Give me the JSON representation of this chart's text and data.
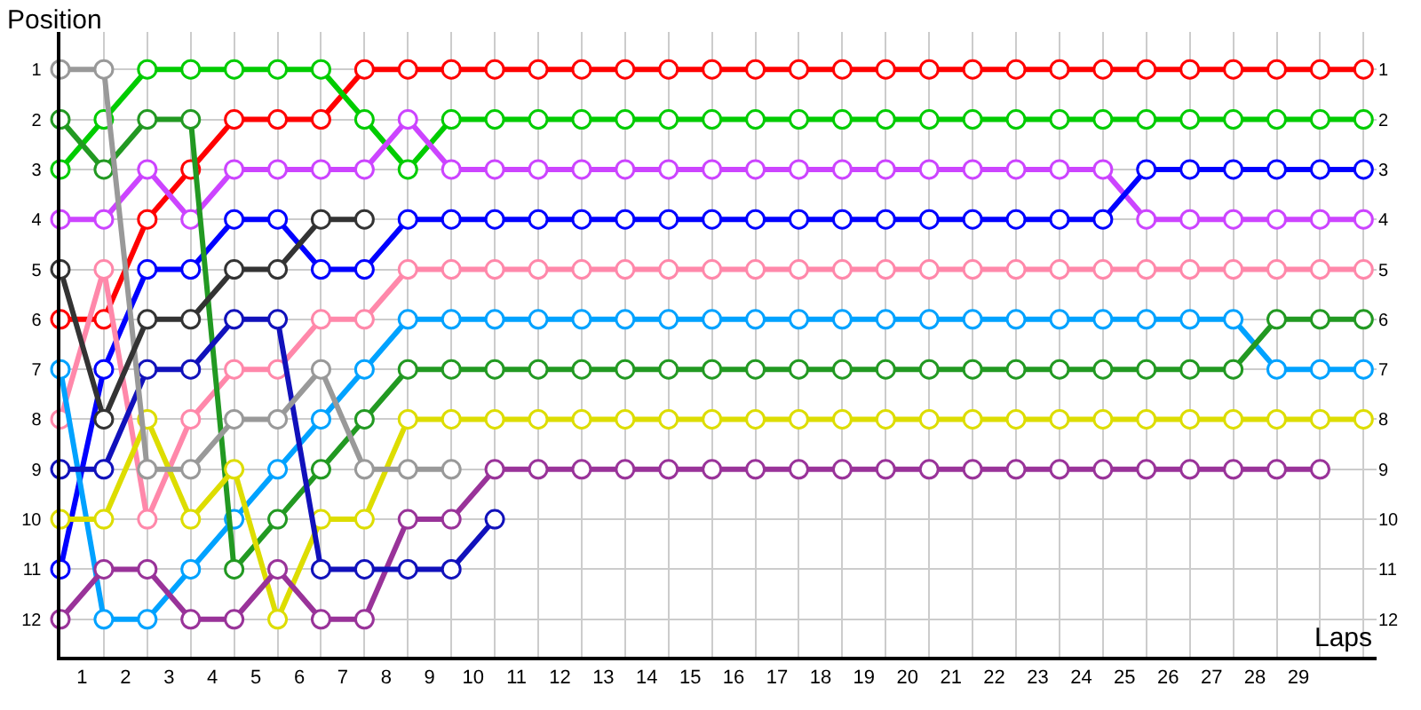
{
  "chart_data": {
    "type": "line",
    "xlabel": "Laps",
    "ylabel": "Position",
    "x": [
      0,
      1,
      2,
      3,
      4,
      5,
      6,
      7,
      8,
      9,
      10,
      11,
      12,
      13,
      14,
      15,
      16,
      17,
      18,
      19,
      20,
      21,
      22,
      23,
      24,
      25,
      26,
      27,
      28,
      29,
      30
    ],
    "xlim": [
      0,
      30.3
    ],
    "xticks": [
      {
        "value": 0.5,
        "label": "1"
      },
      {
        "value": 1.5,
        "label": "2"
      },
      {
        "value": 2.5,
        "label": "3"
      },
      {
        "value": 3.5,
        "label": "4"
      },
      {
        "value": 4.5,
        "label": "5"
      },
      {
        "value": 5.5,
        "label": "6"
      },
      {
        "value": 6.5,
        "label": "7"
      },
      {
        "value": 7.5,
        "label": "8"
      },
      {
        "value": 8.5,
        "label": "9"
      },
      {
        "value": 9.5,
        "label": "10"
      },
      {
        "value": 10.5,
        "label": "11"
      },
      {
        "value": 11.5,
        "label": "12"
      },
      {
        "value": 12.5,
        "label": "13"
      },
      {
        "value": 13.5,
        "label": "14"
      },
      {
        "value": 14.5,
        "label": "15"
      },
      {
        "value": 15.5,
        "label": "16"
      },
      {
        "value": 16.5,
        "label": "17"
      },
      {
        "value": 17.5,
        "label": "18"
      },
      {
        "value": 18.5,
        "label": "19"
      },
      {
        "value": 19.5,
        "label": "20"
      },
      {
        "value": 20.5,
        "label": "21"
      },
      {
        "value": 21.5,
        "label": "22"
      },
      {
        "value": 22.5,
        "label": "23"
      },
      {
        "value": 23.5,
        "label": "24"
      },
      {
        "value": 24.5,
        "label": "25"
      },
      {
        "value": 25.5,
        "label": "26"
      },
      {
        "value": 26.5,
        "label": "27"
      },
      {
        "value": 27.5,
        "label": "28"
      },
      {
        "value": 28.5,
        "label": "29"
      }
    ],
    "ylim": [
      12.75,
      0.25
    ],
    "yticks": [
      1,
      2,
      3,
      4,
      5,
      6,
      7,
      8,
      9,
      10,
      11,
      12
    ],
    "y2lim": [
      12.75,
      0.25
    ],
    "y2ticks": [
      1,
      2,
      3,
      4,
      5,
      6,
      7,
      8,
      9,
      10,
      11,
      12
    ],
    "grid": true,
    "legend": false,
    "marker": "circle",
    "line_style": "solid",
    "series": [
      {
        "color": "#ff0000",
        "values": [
          6,
          6,
          4,
          3,
          2,
          2,
          2,
          1,
          1,
          1,
          1,
          1,
          1,
          1,
          1,
          1,
          1,
          1,
          1,
          1,
          1,
          1,
          1,
          1,
          1,
          1,
          1,
          1,
          1,
          1,
          1
        ]
      },
      {
        "color": "#00cc00",
        "values": [
          3,
          2,
          1,
          1,
          1,
          1,
          1,
          2,
          3,
          2,
          2,
          2,
          2,
          2,
          2,
          2,
          2,
          2,
          2,
          2,
          2,
          2,
          2,
          2,
          2,
          2,
          2,
          2,
          2,
          2,
          2
        ]
      },
      {
        "color": "#cc44ff",
        "values": [
          4,
          4,
          3,
          4,
          3,
          3,
          3,
          3,
          2,
          3,
          3,
          3,
          3,
          3,
          3,
          3,
          3,
          3,
          3,
          3,
          3,
          3,
          3,
          3,
          3,
          4,
          4,
          4,
          4,
          4,
          4
        ]
      },
      {
        "color": "#0000ff",
        "values": [
          11,
          7,
          5,
          5,
          4,
          4,
          5,
          5,
          4,
          4,
          4,
          4,
          4,
          4,
          4,
          4,
          4,
          4,
          4,
          4,
          4,
          4,
          4,
          4,
          4,
          3,
          3,
          3,
          3,
          3,
          3
        ]
      },
      {
        "color": "#ff88aa",
        "values": [
          8,
          5,
          10,
          8,
          7,
          7,
          6,
          6,
          5,
          5,
          5,
          5,
          5,
          5,
          5,
          5,
          5,
          5,
          5,
          5,
          5,
          5,
          5,
          5,
          5,
          5,
          5,
          5,
          5,
          5,
          5
        ]
      },
      {
        "color": "#00a2ff",
        "values": [
          7,
          12,
          12,
          11,
          10,
          9,
          8,
          7,
          6,
          6,
          6,
          6,
          6,
          6,
          6,
          6,
          6,
          6,
          6,
          6,
          6,
          6,
          6,
          6,
          6,
          6,
          6,
          6,
          7,
          7,
          7
        ]
      },
      {
        "color": "#229922",
        "values": [
          2,
          3,
          2,
          2,
          11,
          10,
          9,
          8,
          7,
          7,
          7,
          7,
          7,
          7,
          7,
          7,
          7,
          7,
          7,
          7,
          7,
          7,
          7,
          7,
          7,
          7,
          7,
          7,
          6,
          6,
          6
        ]
      },
      {
        "color": "#dddd00",
        "values": [
          10,
          10,
          8,
          10,
          9,
          12,
          10,
          10,
          8,
          8,
          8,
          8,
          8,
          8,
          8,
          8,
          8,
          8,
          8,
          8,
          8,
          8,
          8,
          8,
          8,
          8,
          8,
          8,
          8,
          8,
          8
        ]
      },
      {
        "color": "#993399",
        "values": [
          12,
          11,
          11,
          12,
          12,
          11,
          12,
          12,
          10,
          10,
          9,
          9,
          9,
          9,
          9,
          9,
          9,
          9,
          9,
          9,
          9,
          9,
          9,
          9,
          9,
          9,
          9,
          9,
          9,
          9,
          null
        ]
      },
      {
        "color": "#1111bb",
        "values": [
          9,
          9,
          7,
          7,
          6,
          6,
          11,
          11,
          11,
          11,
          10,
          null,
          null,
          null,
          null,
          null,
          null,
          null,
          null,
          null,
          null,
          null,
          null,
          null,
          null,
          null,
          null,
          null,
          null,
          null,
          null
        ]
      },
      {
        "color": "#999999",
        "values": [
          1,
          1,
          9,
          9,
          8,
          8,
          7,
          9,
          9,
          9,
          null,
          null,
          null,
          null,
          null,
          null,
          null,
          null,
          null,
          null,
          null,
          null,
          null,
          null,
          null,
          null,
          null,
          null,
          null,
          null,
          null
        ]
      },
      {
        "color": "#333333",
        "values": [
          5,
          8,
          6,
          6,
          5,
          5,
          4,
          4,
          null,
          null,
          null,
          null,
          null,
          null,
          null,
          null,
          null,
          null,
          null,
          null,
          null,
          null,
          null,
          null,
          null,
          null,
          null,
          null,
          null,
          null,
          null
        ]
      }
    ]
  }
}
